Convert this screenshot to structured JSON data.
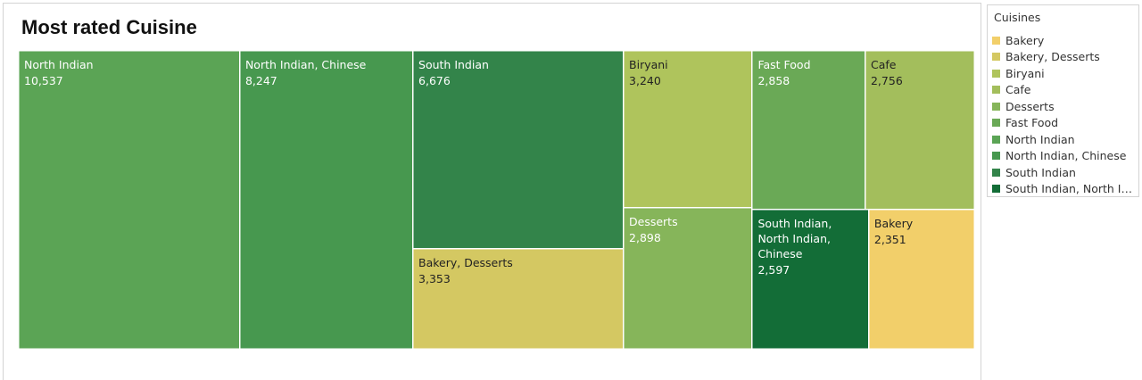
{
  "chart_data": {
    "type": "treemap",
    "title": "Most rated Cuisine",
    "legend": {
      "title": "Cuisines",
      "placement": "right",
      "items": [
        {
          "name": "Bakery",
          "color": "#f2cf6a"
        },
        {
          "name": "Bakery, Desserts",
          "color": "#d4c862"
        },
        {
          "name": "Biryani",
          "color": "#afc45c"
        },
        {
          "name": "Cafe",
          "color": "#a3be5c"
        },
        {
          "name": "Desserts",
          "color": "#86b55a"
        },
        {
          "name": "Fast Food",
          "color": "#6aa956"
        },
        {
          "name": "North Indian",
          "color": "#5ba455"
        },
        {
          "name": "North Indian, Chinese",
          "color": "#47984f"
        },
        {
          "name": "South Indian",
          "color": "#33844a"
        },
        {
          "name": "South Indian, North In..",
          "color": "#136d37"
        }
      ]
    },
    "cells": [
      {
        "label": "North Indian",
        "value": 10537,
        "value_text": "10,537",
        "color": "#5ba455"
      },
      {
        "label": "North Indian, Chinese",
        "value": 8247,
        "value_text": "8,247",
        "color": "#47984f"
      },
      {
        "label": "South Indian",
        "value": 6676,
        "value_text": "6,676",
        "color": "#33844a"
      },
      {
        "label": "Bakery, Desserts",
        "value": 3353,
        "value_text": "3,353",
        "color": "#d4c862"
      },
      {
        "label": "Biryani",
        "value": 3240,
        "value_text": "3,240",
        "color": "#afc45c"
      },
      {
        "label": "Desserts",
        "value": 2898,
        "value_text": "2,898",
        "color": "#86b55a"
      },
      {
        "label": "Fast Food",
        "value": 2858,
        "value_text": "2,858",
        "color": "#6aa956"
      },
      {
        "label": "Cafe",
        "value": 2756,
        "value_text": "2,756",
        "color": "#a3be5c"
      },
      {
        "label": "South Indian, North Indian, Chinese",
        "value": 2597,
        "value_text": "2,597",
        "color": "#136d37"
      },
      {
        "label": "Bakery",
        "value": 2351,
        "value_text": "2,351",
        "color": "#f2cf6a"
      }
    ]
  }
}
